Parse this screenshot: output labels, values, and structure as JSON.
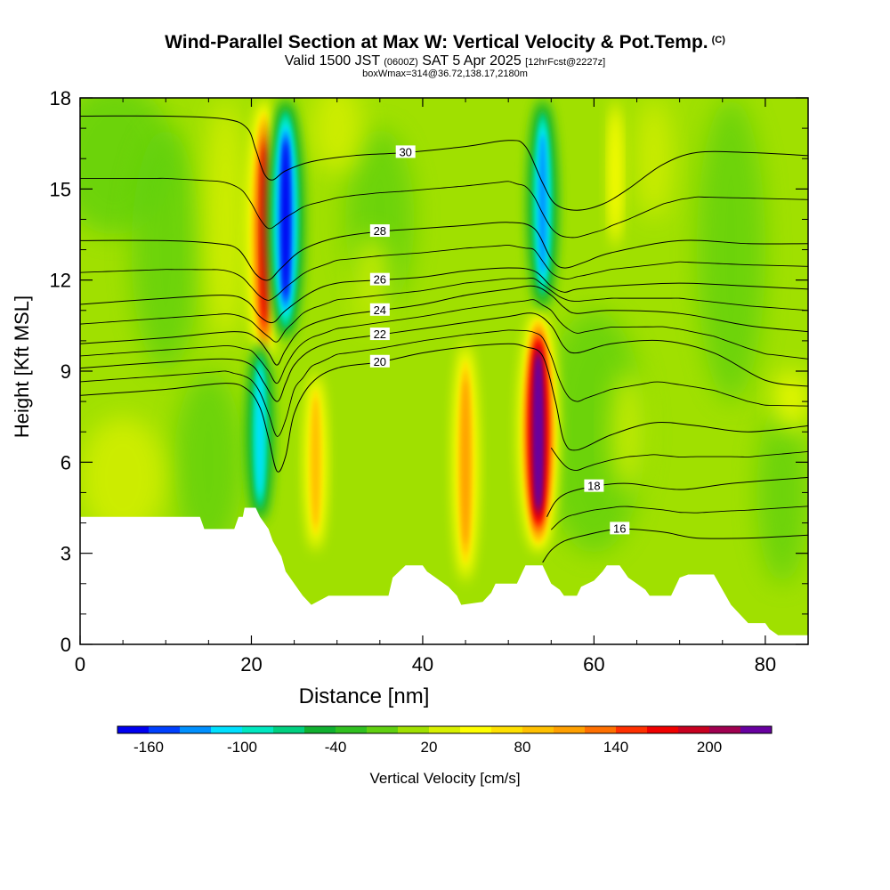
{
  "header": {
    "title": "Wind-Parallel Section at Max W: Vertical Velocity & Pot.Temp.",
    "copyright": "(C)",
    "valid_prefix": "Valid 1500 JST",
    "valid_utc": "(0600Z)",
    "valid_date": "SAT 5 Apr 2025",
    "forecast": "[12hrFcst@2227z]",
    "box_info": "boxWmax=314@36.72,138.17,2180m"
  },
  "chart_data": {
    "type": "heatmap",
    "xlabel": "Distance [nm]",
    "ylabel": "Height [Kft MSL]",
    "xlim": [
      0,
      85
    ],
    "ylim": [
      0,
      18
    ],
    "xticks": [
      0,
      20,
      40,
      60,
      80
    ],
    "yticks": [
      0,
      3,
      6,
      9,
      12,
      15,
      18
    ],
    "colorbar": {
      "label": "Vertical Velocity [cm/s]",
      "tick_labels": [
        "-160",
        "-100",
        "-40",
        "20",
        "80",
        "140",
        "200"
      ],
      "levels": [
        -180,
        -160,
        -140,
        -120,
        -100,
        -80,
        -60,
        -40,
        -20,
        0,
        20,
        40,
        60,
        80,
        100,
        120,
        140,
        160,
        180,
        200,
        220,
        240
      ],
      "colors": [
        "#0000f0",
        "#0040ff",
        "#0090ff",
        "#00e0ff",
        "#00e8c0",
        "#00d080",
        "#10b030",
        "#30c020",
        "#60d010",
        "#a0e000",
        "#d8f000",
        "#ffff00",
        "#ffe000",
        "#ffc000",
        "#ffa000",
        "#ff7000",
        "#ff3000",
        "#f00000",
        "#c80020",
        "#a00050",
        "#6800a0"
      ]
    },
    "features": [
      {
        "type": "updraft",
        "x": 21.5,
        "y_range": [
          9,
          18
        ],
        "peak_w": 160
      },
      {
        "type": "downdraft",
        "x": 24,
        "y_range": [
          10,
          18
        ],
        "peak_w": -160
      },
      {
        "type": "downdraft",
        "x": 21,
        "y_range": [
          4,
          10
        ],
        "peak_w": -100
      },
      {
        "type": "updraft",
        "x": 27.5,
        "y_range": [
          3,
          9
        ],
        "peak_w": 80
      },
      {
        "type": "updraft",
        "x": 45,
        "y_range": [
          2,
          10
        ],
        "peak_w": 100
      },
      {
        "type": "updraft",
        "x": 53.5,
        "y_range": [
          3,
          11
        ],
        "peak_w": 240
      },
      {
        "type": "downdraft",
        "x": 54,
        "y_range": [
          11,
          18
        ],
        "peak_w": -120
      },
      {
        "type": "updraft",
        "x": 62.5,
        "y_range": [
          13,
          18
        ],
        "peak_w": 40
      }
    ],
    "terrain": [
      [
        0,
        4.2
      ],
      [
        14,
        4.2
      ],
      [
        14.5,
        3.8
      ],
      [
        18,
        3.8
      ],
      [
        18.5,
        4.2
      ],
      [
        19,
        4.2
      ],
      [
        19.2,
        4.5
      ],
      [
        20.5,
        4.5
      ],
      [
        21,
        4.2
      ],
      [
        22,
        3.8
      ],
      [
        22.5,
        3.4
      ],
      [
        23.5,
        2.9
      ],
      [
        24,
        2.4
      ],
      [
        25,
        2.0
      ],
      [
        25.5,
        1.8
      ],
      [
        26,
        1.6
      ],
      [
        27,
        1.3
      ],
      [
        29,
        1.6
      ],
      [
        36,
        1.6
      ],
      [
        36.5,
        2.2
      ],
      [
        38,
        2.6
      ],
      [
        40,
        2.6
      ],
      [
        40.5,
        2.4
      ],
      [
        42,
        2.1
      ],
      [
        43,
        1.9
      ],
      [
        44,
        1.6
      ],
      [
        44.5,
        1.3
      ],
      [
        47,
        1.4
      ],
      [
        48,
        1.7
      ],
      [
        48.5,
        2.0
      ],
      [
        51,
        2.0
      ],
      [
        51.5,
        2.3
      ],
      [
        52,
        2.6
      ],
      [
        54,
        2.6
      ],
      [
        54.5,
        2.3
      ],
      [
        55,
        2.0
      ],
      [
        56,
        1.8
      ],
      [
        56.5,
        1.6
      ],
      [
        58,
        1.6
      ],
      [
        58.5,
        1.9
      ],
      [
        60,
        2.1
      ],
      [
        61,
        2.4
      ],
      [
        61.5,
        2.6
      ],
      [
        63,
        2.6
      ],
      [
        64,
        2.2
      ],
      [
        65,
        2.0
      ],
      [
        66,
        1.8
      ],
      [
        66.5,
        1.6
      ],
      [
        69,
        1.6
      ],
      [
        69.5,
        1.9
      ],
      [
        70,
        2.2
      ],
      [
        71,
        2.3
      ],
      [
        74,
        2.3
      ],
      [
        75,
        1.8
      ],
      [
        76,
        1.3
      ],
      [
        77,
        1.0
      ],
      [
        78,
        0.7
      ],
      [
        80,
        0.7
      ],
      [
        80.5,
        0.5
      ],
      [
        81,
        0.4
      ],
      [
        81.5,
        0.3
      ],
      [
        85,
        0.3
      ]
    ],
    "contours": {
      "variable": "Potential Temperature",
      "lines": [
        {
          "label": "16",
          "points": [
            [
              54,
              2.7
            ],
            [
              55,
              3.1
            ],
            [
              56.5,
              3.4
            ],
            [
              59,
              3.6
            ],
            [
              63,
              3.8
            ],
            [
              68,
              3.7
            ],
            [
              72,
              3.5
            ],
            [
              78,
              3.5
            ],
            [
              85,
              3.6
            ]
          ]
        },
        {
          "label": "18",
          "points": [
            [
              54.5,
              4.2
            ],
            [
              55.5,
              4.7
            ],
            [
              57,
              5.0
            ],
            [
              60,
              5.2
            ],
            [
              64,
              5.3
            ],
            [
              70,
              5.1
            ],
            [
              76,
              5.3
            ],
            [
              85,
              5.5
            ]
          ]
        },
        {
          "label": "20",
          "points": [
            [
              0,
              8.2
            ],
            [
              10,
              8.4
            ],
            [
              17,
              8.6
            ],
            [
              19.5,
              8.4
            ],
            [
              21,
              7.8
            ],
            [
              22,
              6.8
            ],
            [
              23,
              5.7
            ],
            [
              24,
              6.2
            ],
            [
              25,
              7.6
            ],
            [
              27,
              8.6
            ],
            [
              30,
              9.1
            ],
            [
              35,
              9.3
            ],
            [
              40,
              9.6
            ],
            [
              45,
              9.8
            ],
            [
              50,
              9.9
            ],
            [
              52,
              9.8
            ],
            [
              54,
              9.5
            ],
            [
              55.5,
              8.0
            ],
            [
              56.5,
              6.7
            ],
            [
              58,
              6.4
            ],
            [
              62,
              6.9
            ],
            [
              67,
              7.3
            ],
            [
              72,
              7.2
            ],
            [
              78,
              7.0
            ],
            [
              85,
              7.2
            ]
          ]
        },
        {
          "label": "22",
          "points": [
            [
              0,
              9.1
            ],
            [
              10,
              9.3
            ],
            [
              17,
              9.4
            ],
            [
              20,
              9.2
            ],
            [
              21.5,
              8.6
            ],
            [
              23,
              8.0
            ],
            [
              24,
              8.6
            ],
            [
              25,
              9.2
            ],
            [
              27,
              9.7
            ],
            [
              30,
              10.0
            ],
            [
              35,
              10.2
            ],
            [
              40,
              10.4
            ],
            [
              45,
              10.6
            ],
            [
              50,
              10.8
            ],
            [
              53,
              10.9
            ],
            [
              55,
              10.5
            ],
            [
              56.5,
              9.8
            ],
            [
              58,
              9.6
            ],
            [
              62,
              9.9
            ],
            [
              68,
              10.0
            ],
            [
              74,
              9.6
            ],
            [
              80,
              8.7
            ],
            [
              85,
              8.5
            ]
          ]
        },
        {
          "label": "24",
          "points": [
            [
              0,
              9.9
            ],
            [
              10,
              10.1
            ],
            [
              18,
              10.3
            ],
            [
              20.5,
              10.1
            ],
            [
              22,
              9.6
            ],
            [
              23,
              9.2
            ],
            [
              24,
              9.7
            ],
            [
              26,
              10.4
            ],
            [
              30,
              10.8
            ],
            [
              35,
              11.0
            ],
            [
              40,
              11.2
            ],
            [
              45,
              11.5
            ],
            [
              50,
              11.7
            ],
            [
              53,
              11.8
            ],
            [
              55,
              11.5
            ],
            [
              56.5,
              11.1
            ],
            [
              58,
              10.9
            ],
            [
              62,
              11.0
            ],
            [
              70,
              10.9
            ],
            [
              78,
              10.5
            ],
            [
              85,
              10.3
            ]
          ]
        },
        {
          "label": "26",
          "points": [
            [
              0,
              11.2
            ],
            [
              10,
              11.4
            ],
            [
              17,
              11.5
            ],
            [
              19.5,
              11.3
            ],
            [
              21,
              10.8
            ],
            [
              22.5,
              10.6
            ],
            [
              24,
              11.0
            ],
            [
              27,
              11.6
            ],
            [
              30,
              11.9
            ],
            [
              35,
              12.0
            ],
            [
              40,
              12.1
            ],
            [
              45,
              12.3
            ],
            [
              50,
              12.4
            ],
            [
              53,
              12.3
            ],
            [
              55,
              11.8
            ],
            [
              56.5,
              11.6
            ],
            [
              58,
              11.7
            ],
            [
              62,
              11.8
            ],
            [
              70,
              11.9
            ],
            [
              78,
              11.8
            ],
            [
              85,
              11.7
            ]
          ]
        },
        {
          "label": "28",
          "points": [
            [
              0,
              13.3
            ],
            [
              10,
              13.3
            ],
            [
              16,
              13.2
            ],
            [
              18.5,
              13.0
            ],
            [
              20.5,
              12.2
            ],
            [
              22,
              12.0
            ],
            [
              23.5,
              12.4
            ],
            [
              26,
              13.0
            ],
            [
              30,
              13.4
            ],
            [
              35,
              13.6
            ],
            [
              40,
              13.7
            ],
            [
              45,
              13.8
            ],
            [
              50,
              13.9
            ],
            [
              53,
              13.7
            ],
            [
              55,
              12.7
            ],
            [
              56.5,
              12.4
            ],
            [
              59,
              12.6
            ],
            [
              62,
              12.9
            ],
            [
              70,
              13.3
            ],
            [
              78,
              13.2
            ],
            [
              85,
              13.2
            ]
          ]
        },
        {
          "label": "30",
          "points": [
            [
              0,
              17.4
            ],
            [
              10,
              17.4
            ],
            [
              17,
              17.3
            ],
            [
              19.5,
              17.0
            ],
            [
              20.5,
              16.3
            ],
            [
              21.5,
              15.5
            ],
            [
              22.5,
              15.3
            ],
            [
              24,
              15.6
            ],
            [
              27,
              15.9
            ],
            [
              32,
              16.1
            ],
            [
              38,
              16.2
            ],
            [
              45,
              16.4
            ],
            [
              50,
              16.6
            ],
            [
              52,
              16.4
            ],
            [
              54,
              15.2
            ],
            [
              55.5,
              14.5
            ],
            [
              58,
              14.3
            ],
            [
              61,
              14.5
            ],
            [
              64,
              15.0
            ],
            [
              68,
              15.8
            ],
            [
              72,
              16.2
            ],
            [
              78,
              16.2
            ],
            [
              85,
              16.1
            ]
          ]
        }
      ]
    }
  }
}
